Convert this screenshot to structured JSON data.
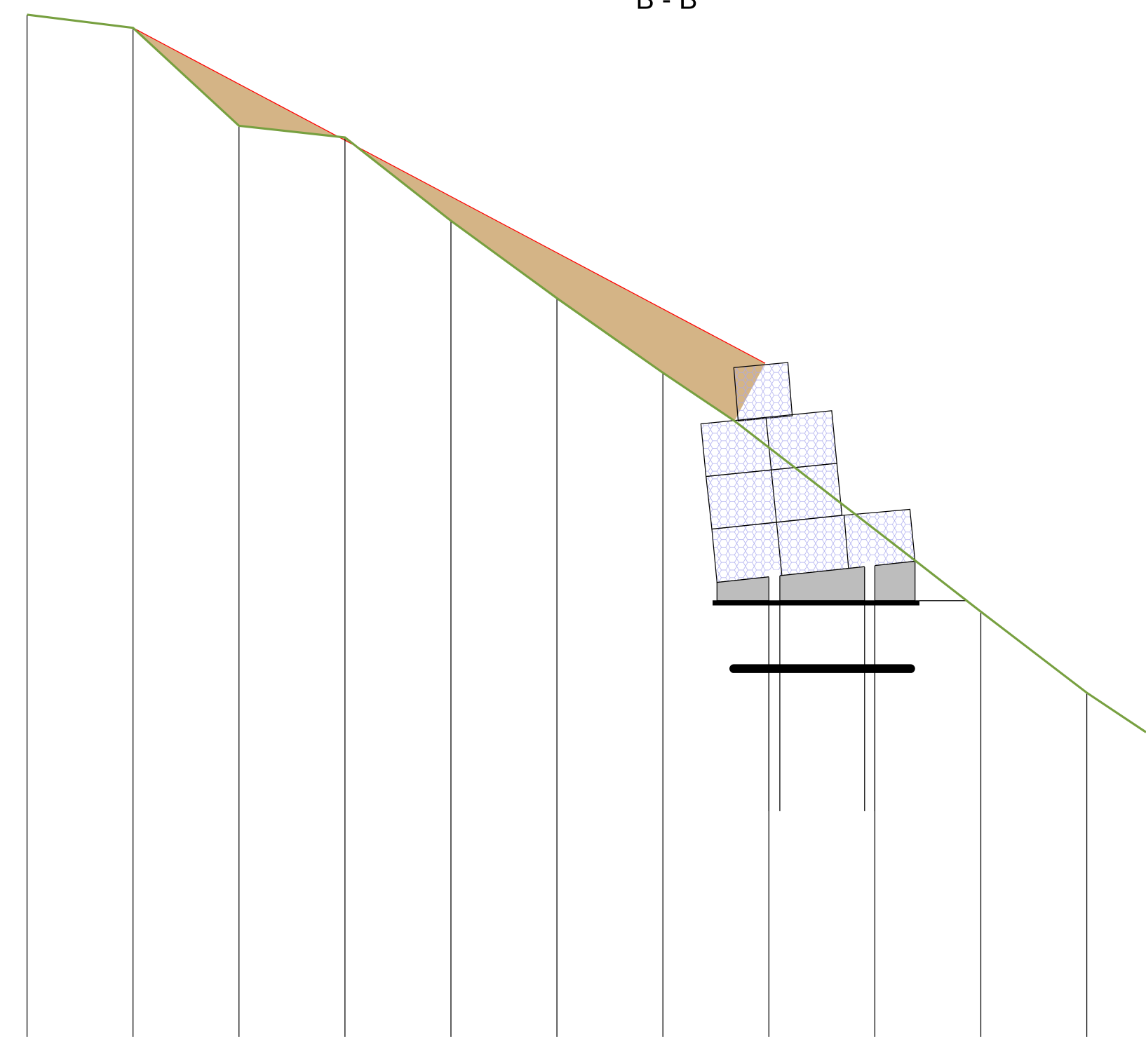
{
  "title": "B - B"
}
